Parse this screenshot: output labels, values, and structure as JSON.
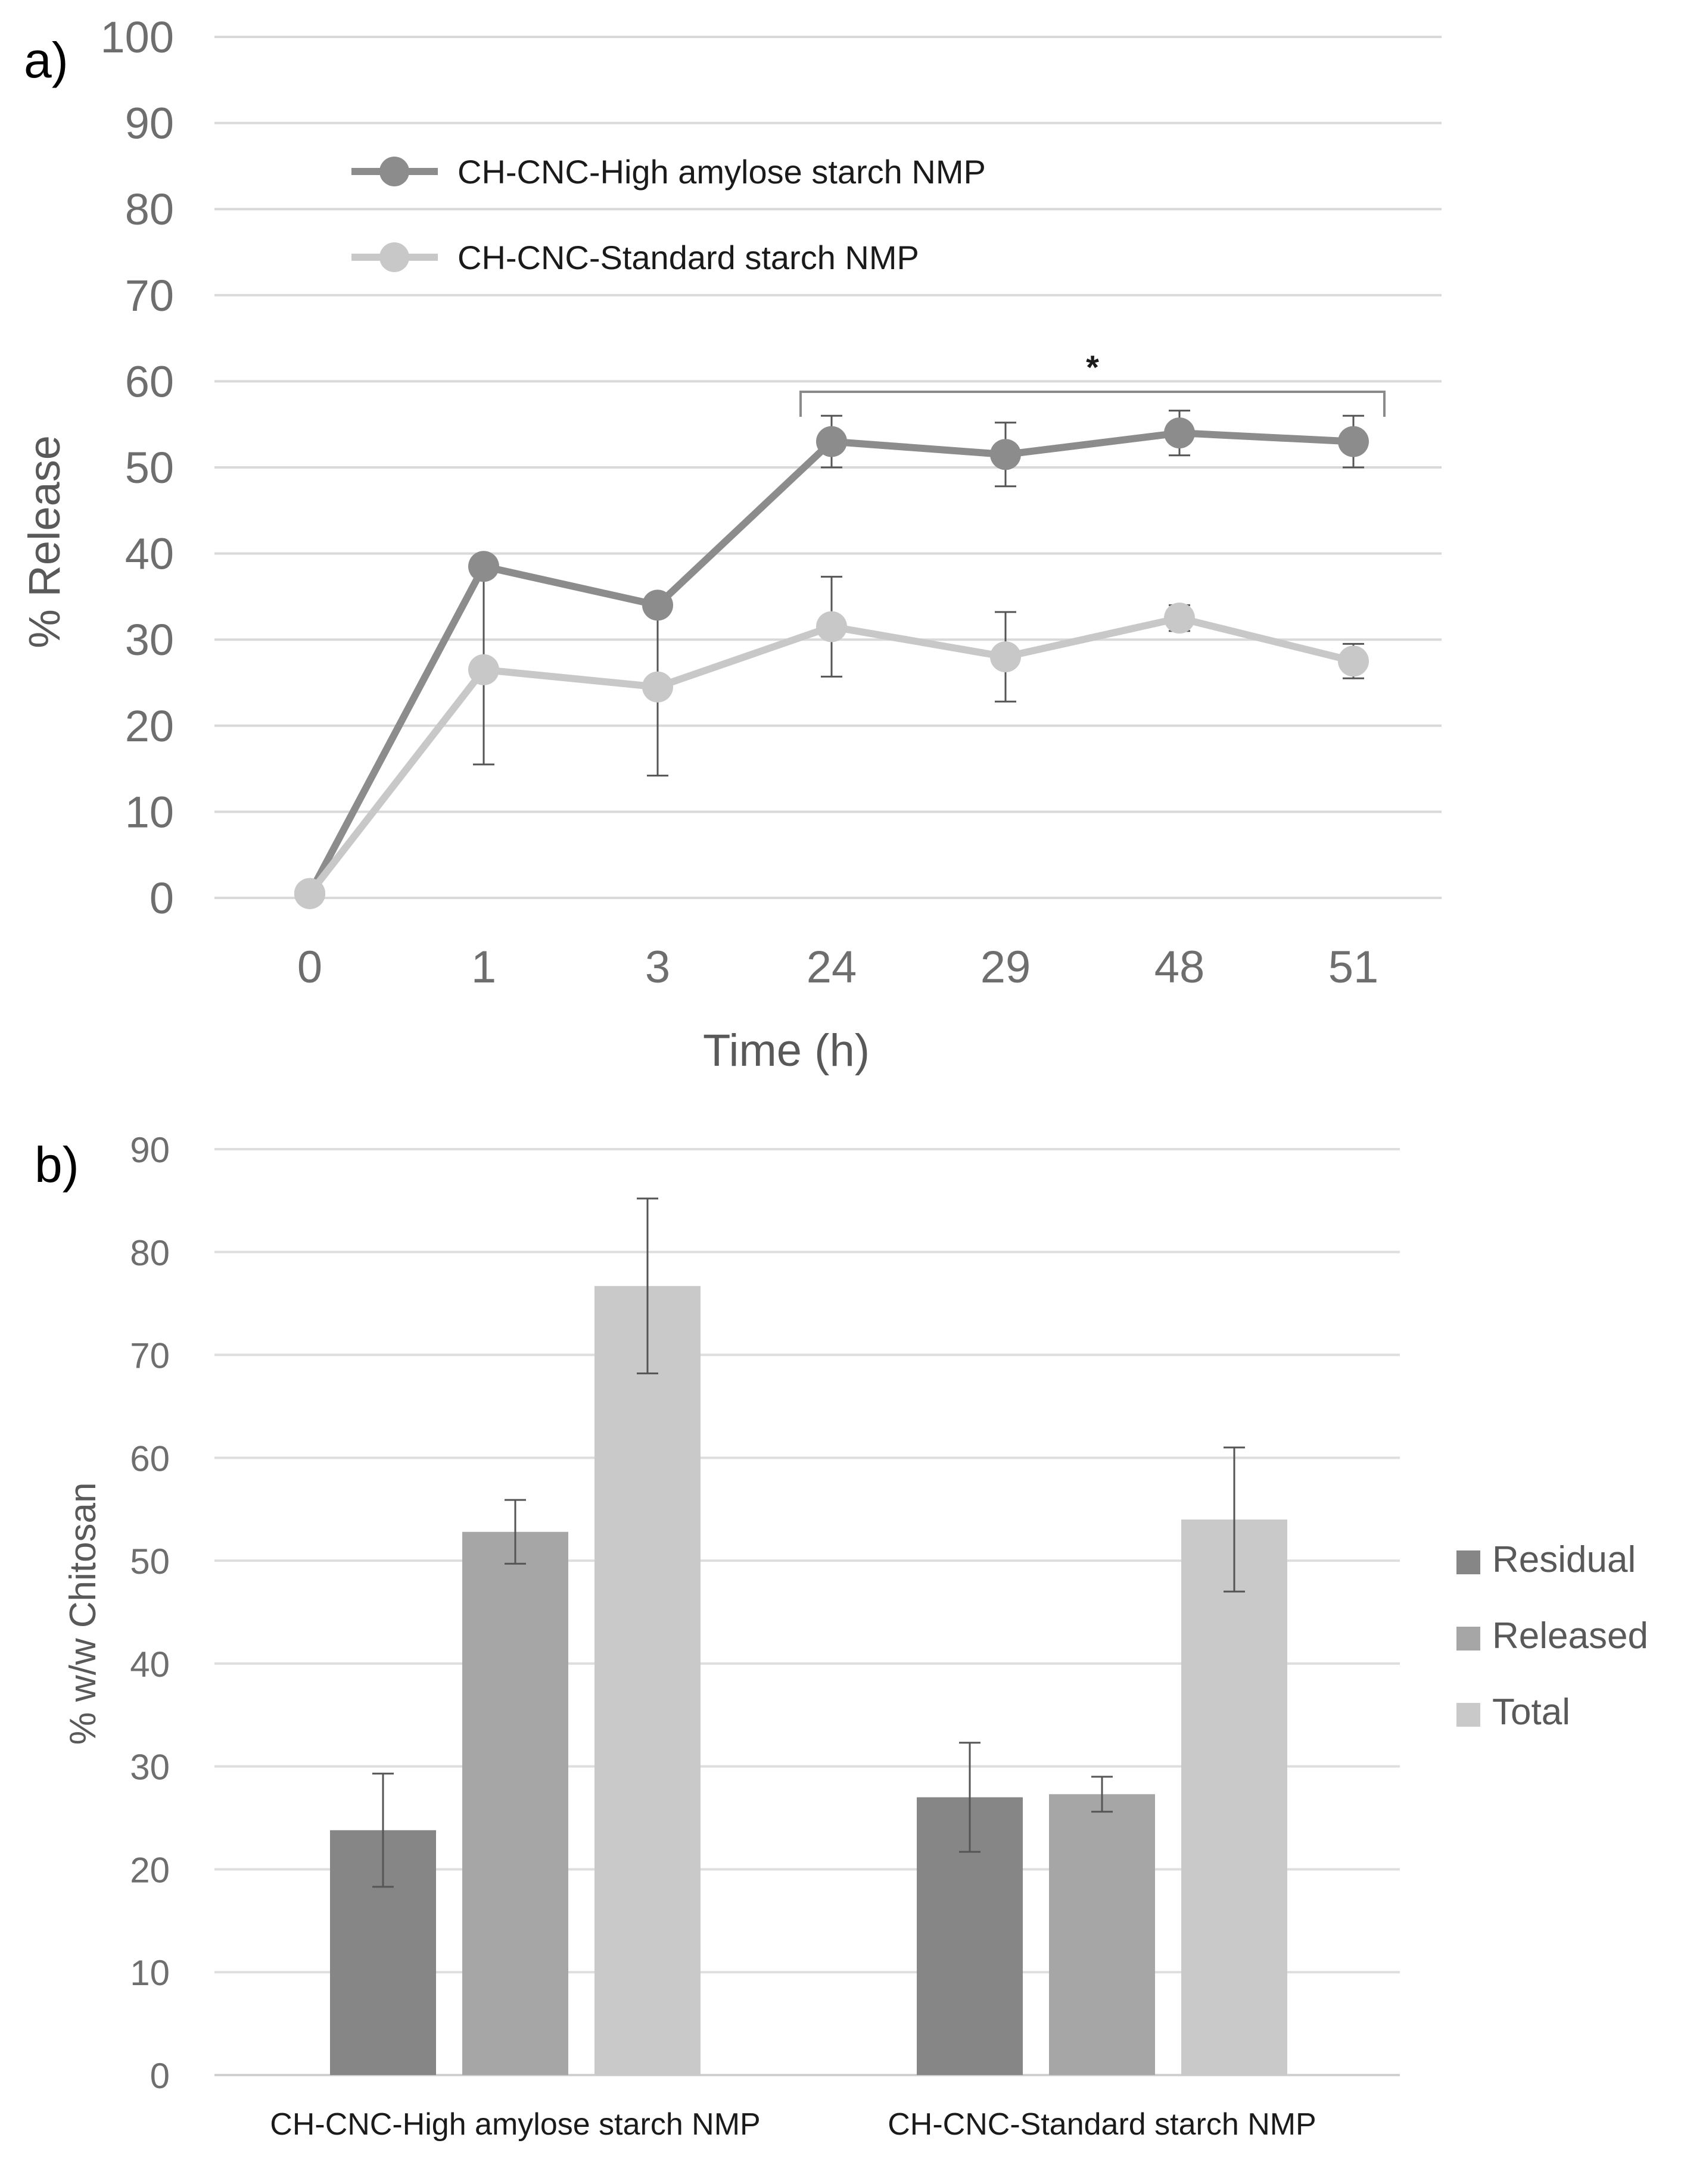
{
  "chart_data": [
    {
      "type": "line",
      "panel_label": "a)",
      "xlabel": "Time (h)",
      "ylabel": "% Release",
      "ylim": [
        0,
        100
      ],
      "yticks": [
        0,
        10,
        20,
        30,
        40,
        50,
        60,
        70,
        80,
        90,
        100
      ],
      "categories": [
        "0",
        "1",
        "3",
        "24",
        "29",
        "48",
        "51"
      ],
      "grid": true,
      "legend_position": "top-left",
      "series": [
        {
          "name": "CH-CNC-High amylose starch NMP",
          "color": "#8c8c8c",
          "values": [
            0.5,
            38.5,
            34,
            53,
            51.5,
            54,
            53
          ],
          "errors": [
            0,
            0,
            0,
            3,
            3.7,
            2.6,
            3
          ]
        },
        {
          "name": "CH-CNC-Standard starch NMP",
          "color": "#c8c8c8",
          "values": [
            0.5,
            26.5,
            24.5,
            31.5,
            28,
            32.5,
            27.5
          ],
          "errors": [
            0,
            11,
            10.3,
            5.8,
            5.2,
            1.5,
            2
          ]
        }
      ],
      "annotation": {
        "text": "*",
        "from_category": "24",
        "to_category": "51"
      }
    },
    {
      "type": "bar",
      "panel_label": "b)",
      "xlabel": "",
      "ylabel": "% w/w Chitosan",
      "ylim": [
        0,
        90
      ],
      "yticks": [
        0,
        10,
        20,
        30,
        40,
        50,
        60,
        70,
        80,
        90
      ],
      "categories": [
        "CH-CNC-High amylose starch NMP",
        "CH-CNC-Standard starch NMP"
      ],
      "grid": true,
      "legend_position": "right",
      "series": [
        {
          "name": "Residual",
          "color": "#868686",
          "values": [
            23.8,
            27
          ],
          "errors": [
            5.5,
            5.3
          ]
        },
        {
          "name": "Released",
          "color": "#a6a6a6",
          "values": [
            52.8,
            27.3
          ],
          "errors": [
            3.1,
            1.7
          ]
        },
        {
          "name": "Total",
          "color": "#c9c9c9",
          "values": [
            76.7,
            54
          ],
          "errors": [
            8.5,
            7
          ]
        }
      ]
    }
  ]
}
